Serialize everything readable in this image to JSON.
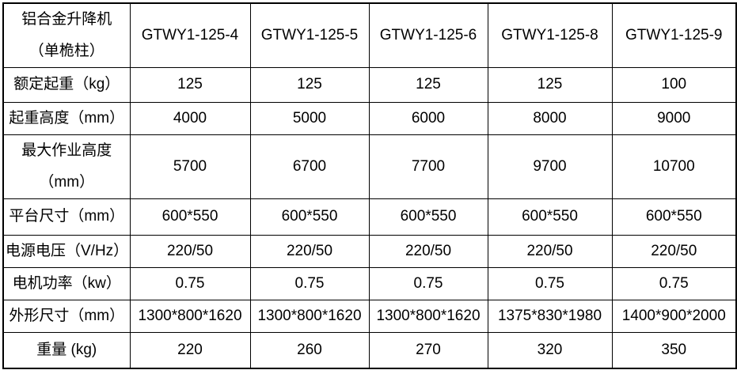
{
  "table": {
    "header": {
      "title": "铝合金升降机\n（单桅柱）",
      "models": [
        "GTWY1-125-4",
        "GTWY1-125-5",
        "GTWY1-125-6",
        "GTWY1-125-8",
        "GTWY1-125-9"
      ]
    },
    "rows": [
      {
        "label": "额定起重（kg）",
        "values": [
          "125",
          "125",
          "125",
          "125",
          "100"
        ]
      },
      {
        "label": "起重高度（mm）",
        "values": [
          "4000",
          "5000",
          "6000",
          "8000",
          "9000"
        ]
      },
      {
        "label": "最大作业高度\n（mm）",
        "values": [
          "5700",
          "6700",
          "7700",
          "9700",
          "10700"
        ]
      },
      {
        "label": "平台尺寸（mm）",
        "values": [
          "600*550",
          "600*550",
          "600*550",
          "600*550",
          "600*550"
        ]
      },
      {
        "label": "电源电压（V/Hz）",
        "values": [
          "220/50",
          "220/50",
          "220/50",
          "220/50",
          "220/50"
        ]
      },
      {
        "label": "电机功率（kw）",
        "values": [
          "0.75",
          "0.75",
          "0.75",
          "0.75",
          "0.75"
        ]
      },
      {
        "label": "外形尺寸（mm）",
        "values": [
          "1300*800*1620",
          "1300*800*1620",
          "1300*800*1620",
          "1375*830*1980",
          "1400*900*2000"
        ]
      },
      {
        "label": "重量 (kg)",
        "values": [
          "220",
          "260",
          "270",
          "320",
          "350"
        ]
      }
    ],
    "colors": {
      "border": "#000000",
      "text": "#000000",
      "background": "#ffffff"
    }
  }
}
